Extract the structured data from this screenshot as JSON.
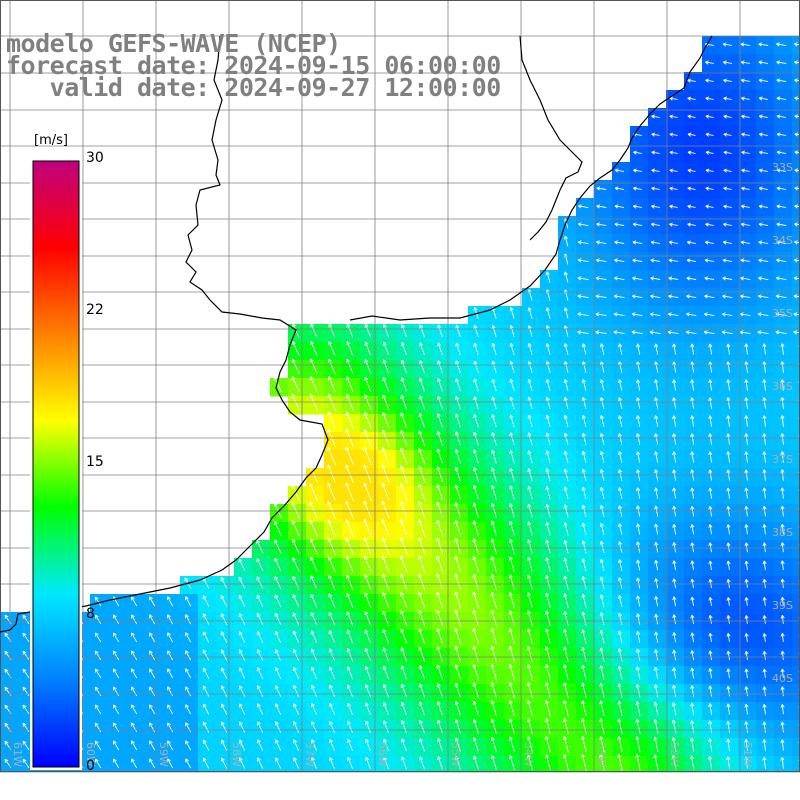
{
  "title": {
    "line1": "modelo GEFS-WAVE (NCEP)",
    "line2": "forecast date: 2024-09-15 06:00:00",
    "line3": "   valid date: 2024-09-27 12:00:00"
  },
  "colorbar": {
    "unit": "[m/s]",
    "ticks": [
      "30",
      "22",
      "15",
      "8",
      "0"
    ],
    "stops": [
      "#0000ff",
      "#0080ff",
      "#00e8ff",
      "#00ff00",
      "#ffff00",
      "#ff8000",
      "#ff0000",
      "#c00080"
    ]
  },
  "latitude_labels": [
    "33S",
    "34S",
    "35S",
    "36S",
    "37S",
    "38S",
    "39S",
    "40S"
  ],
  "longitude_labels": [
    "61W",
    "60W",
    "59W",
    "58W",
    "57W",
    "56W",
    "55W",
    "54W",
    "53W",
    "52W",
    "51W"
  ],
  "colors": {
    "grid": "#808080",
    "coast": "#000000",
    "arrow": "#ffffff",
    "label": "#b0b0b0"
  },
  "field": {
    "quantity": "wind speed",
    "units": "m/s",
    "description_regions": [
      {
        "region": "offshore-east-north",
        "level": 3
      },
      {
        "region": "mid-shelf",
        "level": 7
      },
      {
        "region": "coastal-plume-south",
        "level": 11
      }
    ]
  }
}
